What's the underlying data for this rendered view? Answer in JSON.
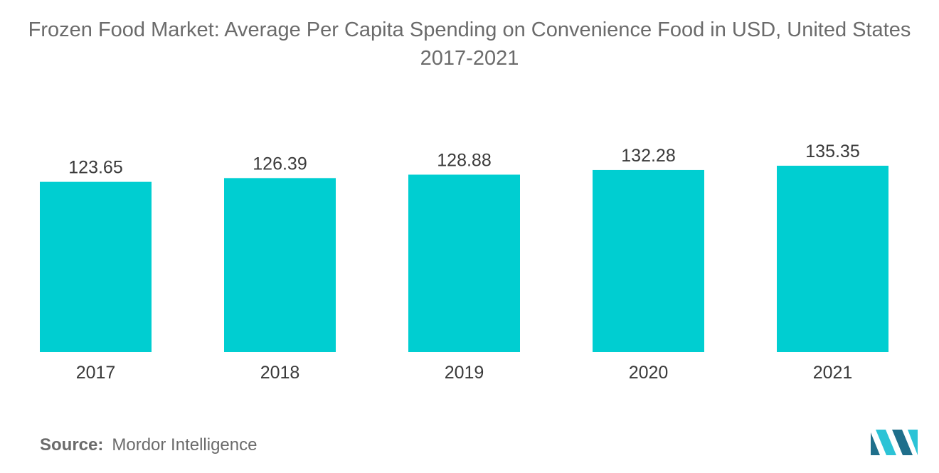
{
  "title": "Frozen Food Market: Average Per Capita Spending on Convenience Food in USD, United States 2017-2021",
  "source": {
    "key": "Source:",
    "value": "Mordor Intelligence"
  },
  "colors": {
    "bar": "#00CED1",
    "logo_dark": "#1f6f8b",
    "logo_light": "#2cc3d6"
  },
  "chart_data": {
    "type": "bar",
    "categories": [
      "2017",
      "2018",
      "2019",
      "2020",
      "2021"
    ],
    "values": [
      123.65,
      126.39,
      128.88,
      132.28,
      135.35
    ],
    "value_labels": [
      "123.65",
      "126.39",
      "128.88",
      "132.28",
      "135.35"
    ],
    "title": "Frozen Food Market: Average Per Capita Spending on Convenience Food in USD, United States 2017-2021",
    "xlabel": "",
    "ylabel": "",
    "ylim": [
      0,
      135.35
    ],
    "grid": false,
    "legend": "none"
  }
}
